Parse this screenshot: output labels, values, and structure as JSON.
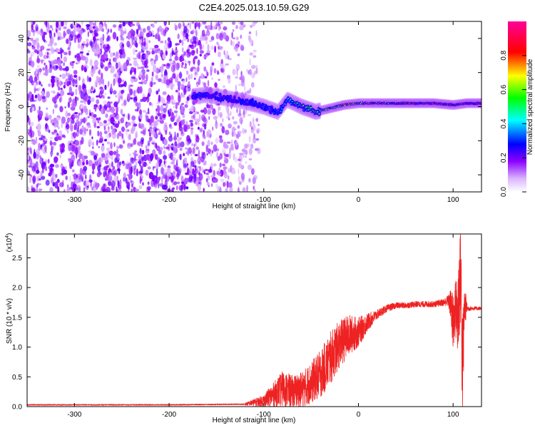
{
  "title": "C2E4.2025.013.10.59.G29",
  "chart_data": [
    {
      "type": "heatmap",
      "xlabel": "Height of straight line (km)",
      "ylabel": "Frequency (Hz)",
      "xlim": [
        -350,
        130
      ],
      "ylim": [
        -50,
        50
      ],
      "xticks": [
        -300,
        -200,
        -100,
        0,
        100
      ],
      "yticks": [
        -40,
        -20,
        0,
        20,
        40
      ],
      "colorbar": {
        "label": "Normalized spectral amplitude",
        "range": [
          0,
          1
        ],
        "ticks": [
          0.0,
          0.2,
          0.4,
          0.6,
          0.8
        ],
        "colormap": [
          "#ffffff",
          "#8b00ff",
          "#0000ff",
          "#00ffff",
          "#00ff00",
          "#ffff00",
          "#ff0000",
          "#ff00aa"
        ]
      },
      "noise_region_x": [
        -350,
        -120
      ],
      "signal_track": {
        "x": [
          -175,
          -160,
          -140,
          -120,
          -100,
          -85,
          -75,
          -60,
          -45,
          -30,
          -15,
          0,
          20,
          40,
          60,
          80,
          100,
          115,
          130
        ],
        "frequency": [
          6,
          7,
          5,
          3,
          0,
          -3,
          4,
          0,
          -3,
          -1,
          1,
          2,
          2,
          2,
          2,
          2,
          1,
          2,
          2
        ],
        "amplitude": [
          0.15,
          0.2,
          0.2,
          0.25,
          0.3,
          0.35,
          0.45,
          0.55,
          0.6,
          0.7,
          0.8,
          0.75,
          0.8,
          0.85,
          0.9,
          0.92,
          0.9,
          0.88,
          0.9
        ]
      }
    },
    {
      "type": "line",
      "xlabel": "Height of straight line (km)",
      "ylabel": "SNR (10 * v/v)",
      "y_multiplier": "(x10",
      "y_multiplier_exp": "4",
      "xlim": [
        -350,
        130
      ],
      "ylim": [
        0,
        2.9
      ],
      "xticks": [
        -300,
        -200,
        -100,
        0,
        100
      ],
      "yticks": [
        0.0,
        0.5,
        1.0,
        1.5,
        2.0,
        2.5
      ],
      "color": "#ee2222",
      "series": [
        {
          "x": [
            -350,
            -200,
            -120,
            -100,
            -90,
            -80,
            -70,
            -60,
            -50,
            -40,
            -30,
            -20,
            -10,
            0,
            10,
            20,
            30,
            40,
            50,
            60,
            70,
            80,
            90,
            95,
            98,
            100,
            102,
            105,
            108,
            110,
            112,
            115,
            120,
            130
          ],
          "values": [
            0.03,
            0.03,
            0.04,
            0.1,
            0.2,
            0.3,
            0.25,
            0.28,
            0.4,
            0.55,
            0.8,
            1.05,
            1.2,
            1.25,
            1.42,
            1.55,
            1.65,
            1.7,
            1.7,
            1.72,
            1.72,
            1.72,
            1.75,
            1.78,
            1.7,
            1.3,
            1.7,
            1.5,
            2.4,
            0.5,
            1.7,
            1.65,
            1.65,
            1.65
          ],
          "spread": [
            0.0,
            0.01,
            0.02,
            0.1,
            0.2,
            0.3,
            0.28,
            0.3,
            0.35,
            0.4,
            0.45,
            0.4,
            0.35,
            0.25,
            0.15,
            0.08,
            0.06,
            0.05,
            0.05,
            0.05,
            0.05,
            0.05,
            0.06,
            0.1,
            0.3,
            0.6,
            0.4,
            0.8,
            1.0,
            1.0,
            0.4,
            0.05,
            0.03,
            0.03
          ]
        }
      ]
    }
  ]
}
